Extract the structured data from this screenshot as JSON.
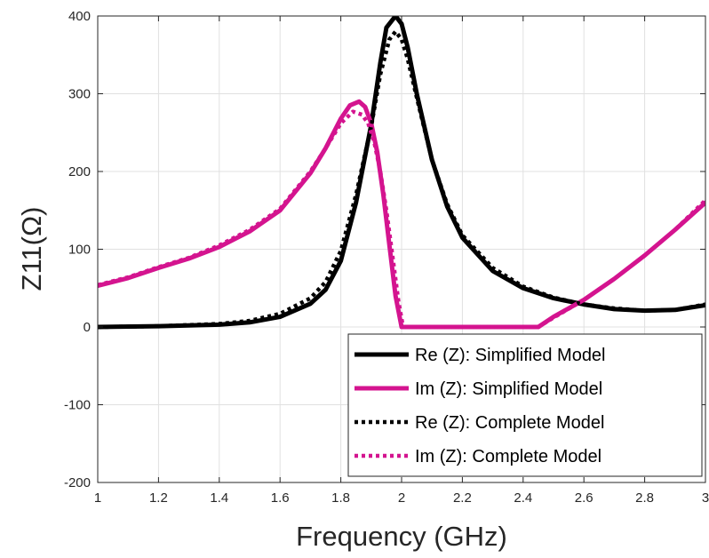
{
  "chart_data": {
    "type": "line",
    "xlabel": "Frequency (GHz)",
    "ylabel": "Z11(Ω)",
    "xlim": [
      1,
      3
    ],
    "ylim": [
      -200,
      400
    ],
    "xticks": [
      1,
      1.2,
      1.4,
      1.6,
      1.8,
      2,
      2.2,
      2.4,
      2.6,
      2.8,
      3
    ],
    "xtick_labels": [
      "1",
      "1.2",
      "1.4",
      "1.6",
      "1.8",
      "2",
      "2.2",
      "2.4",
      "2.6",
      "2.8",
      "3"
    ],
    "yticks": [
      -200,
      -100,
      0,
      100,
      200,
      300,
      400
    ],
    "ytick_labels": [
      "-200",
      "-100",
      "0",
      "100",
      "200",
      "300",
      "400"
    ],
    "grid": true,
    "legend_position": "bottom-right",
    "colors": {
      "black": "#000000",
      "magenta": "#d4148f"
    },
    "series": [
      {
        "name": "Re (Z): Simplified Model",
        "color": "#000000",
        "style": "solid",
        "x": [
          1.0,
          1.2,
          1.4,
          1.5,
          1.6,
          1.7,
          1.75,
          1.8,
          1.85,
          1.9,
          1.93,
          1.95,
          1.98,
          2.0,
          2.02,
          2.05,
          2.1,
          2.15,
          2.2,
          2.3,
          2.4,
          2.5,
          2.6,
          2.7,
          2.8,
          2.9,
          3.0
        ],
        "y": [
          0,
          1,
          3,
          6,
          13,
          30,
          48,
          85,
          160,
          260,
          340,
          385,
          400,
          390,
          360,
          300,
          215,
          155,
          115,
          72,
          50,
          37,
          29,
          23,
          21,
          22,
          28
        ]
      },
      {
        "name": "Im (Z): Simplified Model",
        "color": "#d4148f",
        "style": "solid",
        "x": [
          1.0,
          1.1,
          1.2,
          1.3,
          1.4,
          1.5,
          1.6,
          1.7,
          1.75,
          1.8,
          1.83,
          1.86,
          1.88,
          1.9,
          1.92,
          1.94,
          1.96,
          1.98,
          2.0,
          2.45,
          2.5,
          2.6,
          2.7,
          2.8,
          2.9,
          3.0
        ],
        "y": [
          53,
          63,
          76,
          88,
          103,
          123,
          150,
          198,
          230,
          268,
          285,
          290,
          283,
          262,
          225,
          170,
          105,
          40,
          0,
          0,
          13,
          35,
          62,
          92,
          125,
          160
        ]
      },
      {
        "name": "Re (Z): Complete Model",
        "color": "#000000",
        "style": "dotted",
        "x": [
          1.0,
          1.2,
          1.4,
          1.5,
          1.6,
          1.7,
          1.75,
          1.8,
          1.85,
          1.9,
          1.93,
          1.96,
          1.98,
          2.0,
          2.02,
          2.05,
          2.1,
          2.15,
          2.2,
          2.3,
          2.4,
          2.5,
          2.6,
          2.7,
          2.8,
          2.9,
          3.0
        ],
        "y": [
          0,
          1,
          4,
          8,
          17,
          37,
          58,
          98,
          170,
          258,
          325,
          370,
          380,
          370,
          345,
          295,
          215,
          158,
          118,
          76,
          52,
          38,
          29,
          24,
          21,
          22,
          29
        ]
      },
      {
        "name": "Im (Z): Complete Model",
        "color": "#d4148f",
        "style": "dotted",
        "x": [
          1.0,
          1.1,
          1.2,
          1.3,
          1.4,
          1.5,
          1.6,
          1.7,
          1.75,
          1.8,
          1.84,
          1.87,
          1.89,
          1.91,
          1.93,
          1.95,
          1.97,
          1.99,
          2.005,
          2.45,
          2.5,
          2.6,
          2.7,
          2.8,
          2.9,
          3.0
        ],
        "y": [
          54,
          64,
          77,
          89,
          105,
          125,
          152,
          200,
          230,
          262,
          277,
          273,
          262,
          238,
          200,
          150,
          92,
          32,
          0,
          0,
          12,
          35,
          62,
          92,
          125,
          163
        ]
      }
    ]
  }
}
